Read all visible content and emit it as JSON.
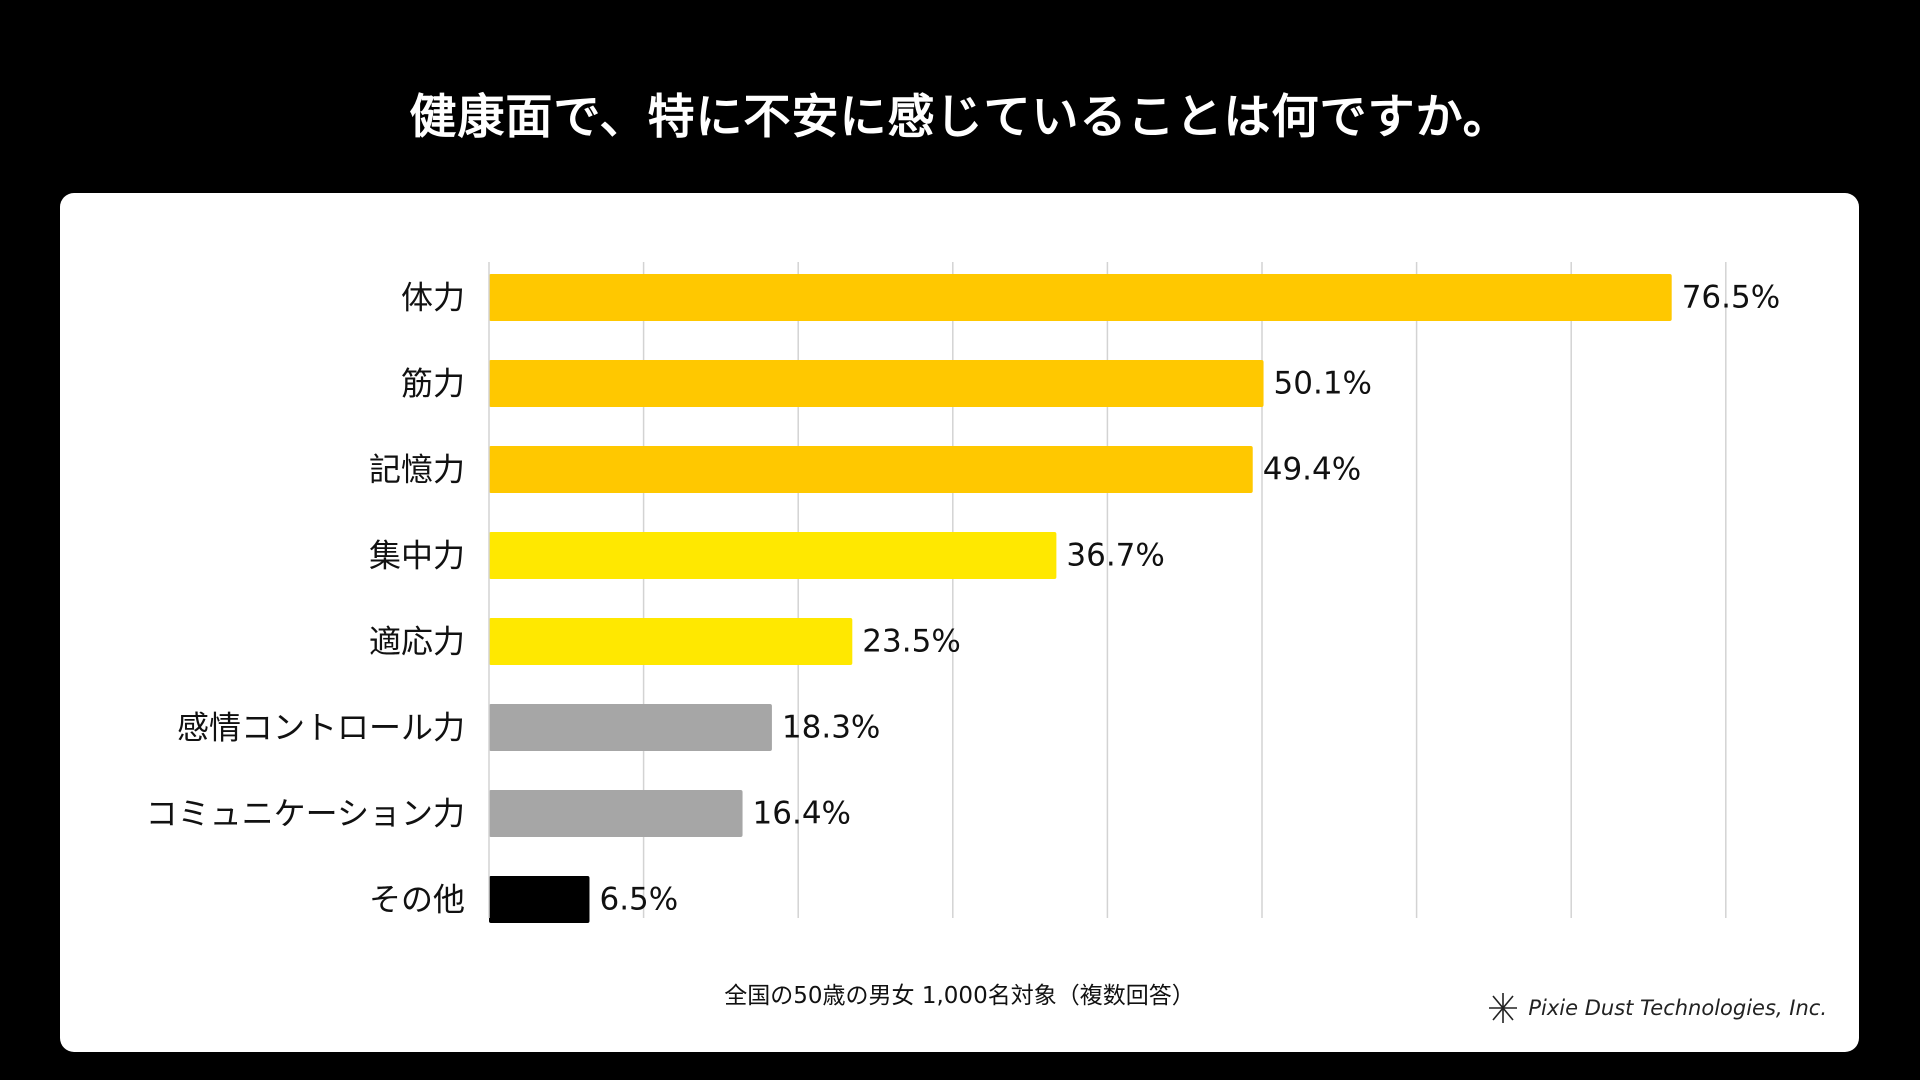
{
  "title": "健康面で、特に不安に感じていることは何ですか。",
  "footnote": "全国の50歳の男女 1,000名対象（複数回答）",
  "credit": {
    "logo_icon": "asterisk-logo-icon",
    "text": "Pixie Dust Technologies, Inc."
  },
  "chart_data": {
    "type": "bar",
    "orientation": "horizontal",
    "categories": [
      "体力",
      "筋力",
      "記憶力",
      "集中力",
      "適応力",
      "感情コントロール力",
      "コミュニケーション力",
      "その他"
    ],
    "values": [
      76.5,
      50.1,
      49.4,
      36.7,
      23.5,
      18.3,
      16.4,
      6.5
    ],
    "value_labels": [
      "76.5%",
      "50.1%",
      "49.4%",
      "36.7%",
      "23.5%",
      "18.3%",
      "16.4%",
      "6.5%"
    ],
    "bar_colors": [
      "#FFC800",
      "#FFC800",
      "#FFC800",
      "#FFE800",
      "#FFE800",
      "#A6A6A6",
      "#A6A6A6",
      "#000000"
    ],
    "xlim": [
      0,
      80
    ],
    "grid": true,
    "legend": "none"
  }
}
